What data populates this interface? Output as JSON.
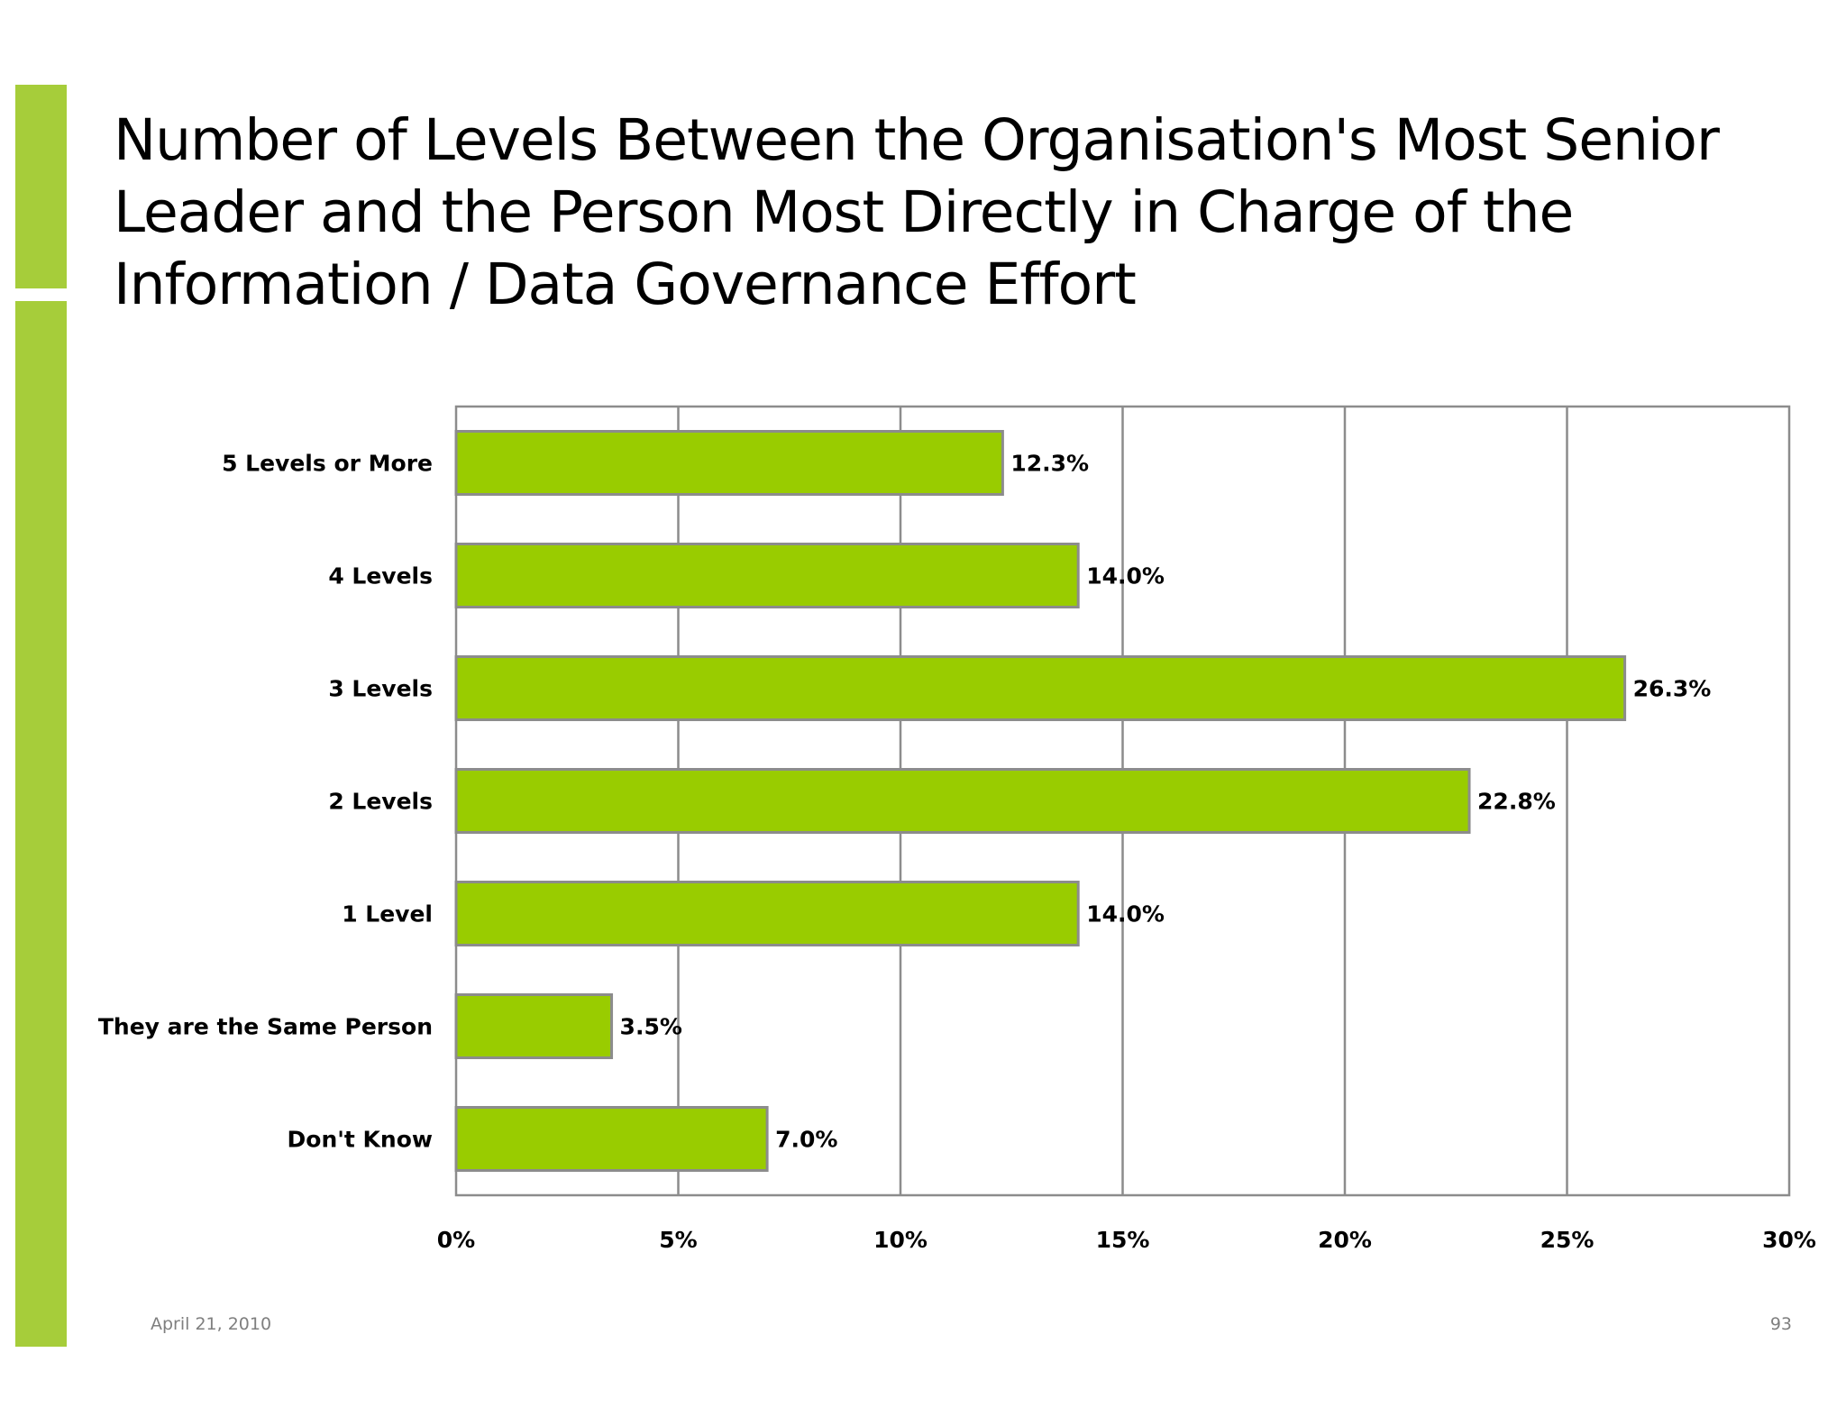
{
  "slide": {
    "title_lines": [
      "Number of Levels Between the Organisation's Most Senior",
      "Leader and the Person Most Directly in Charge of the",
      "Information / Data Governance Effort"
    ],
    "date": "April 21, 2010",
    "page_number": "93",
    "accent_color": "#a6cd3a"
  },
  "chart_data": {
    "type": "bar",
    "orientation": "horizontal",
    "categories": [
      "5 Levels or More",
      "4 Levels",
      "3 Levels",
      "2 Levels",
      "1 Level",
      "They are the Same Person",
      "Don't Know"
    ],
    "values": [
      12.3,
      14.0,
      26.3,
      22.8,
      14.0,
      3.5,
      7.0
    ],
    "value_labels": [
      "12.3%",
      "14.0%",
      "26.3%",
      "22.8%",
      "14.0%",
      "3.5%",
      "7.0%"
    ],
    "xlim": [
      0,
      30
    ],
    "x_ticks": [
      0,
      5,
      10,
      15,
      20,
      25,
      30
    ],
    "x_tick_labels": [
      "0%",
      "5%",
      "10%",
      "15%",
      "20%",
      "25%",
      "30%"
    ],
    "grid": true,
    "bar_color": "#99cc00",
    "bar_border_color": "#8c8c8c",
    "grid_color": "#8c8c8c"
  }
}
